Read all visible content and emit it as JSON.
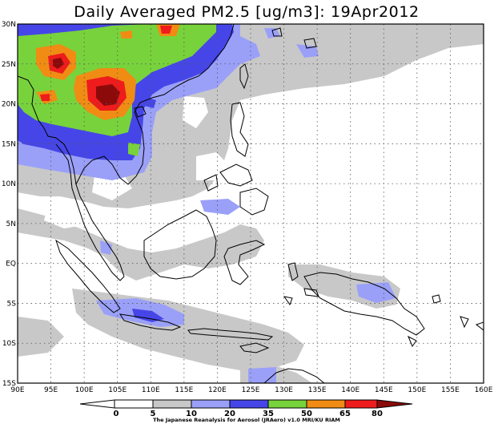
{
  "title": "Daily Averaged PM2.5 [ug/m3]: 19Apr2012",
  "map": {
    "lon_range": [
      90,
      160
    ],
    "lat_range": [
      -15,
      30
    ],
    "x_ticks": [
      "90E",
      "95E",
      "100E",
      "105E",
      "110E",
      "115E",
      "120E",
      "125E",
      "130E",
      "135E",
      "140E",
      "145E",
      "150E",
      "155E",
      "160E"
    ],
    "y_ticks": [
      "30N",
      "25N",
      "20N",
      "15N",
      "10N",
      "5N",
      "EQ",
      "5S",
      "10S",
      "15S"
    ],
    "gridlines": "dotted"
  },
  "colorbar": {
    "levels": [
      "0",
      "5",
      "10",
      "20",
      "35",
      "50",
      "65",
      "80"
    ],
    "colors": {
      "c0": "#ffffff",
      "c5": "#ffffff",
      "c10": "#c8c8c8",
      "c20": "#9aa0f8",
      "c35": "#4646e8",
      "c50": "#78d23c",
      "c65": "#f08c14",
      "c80": "#ee1c1c",
      "cmax": "#8c0a0a"
    }
  },
  "credit": "The Japanese Reanalysis for Aerosol (JRAero) v1.0 MRI/KU RIAM"
}
